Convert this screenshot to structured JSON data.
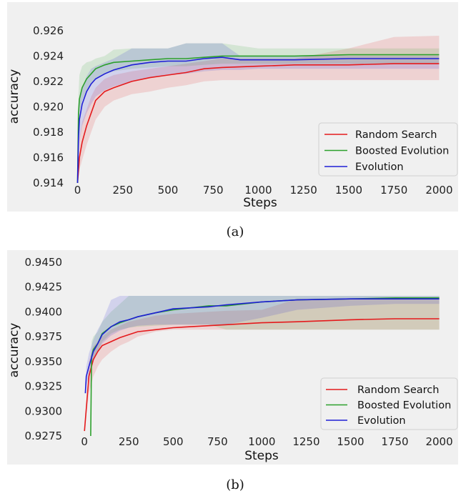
{
  "chart_data": [
    {
      "type": "line",
      "caption": "(a)",
      "xlabel": "Steps",
      "ylabel": "accuracy",
      "xlim": [
        -10,
        2030
      ],
      "ylim": [
        0.914,
        0.9265
      ],
      "xticks": [
        0,
        250,
        500,
        750,
        1000,
        1250,
        1500,
        1750,
        2000
      ],
      "yticks": [
        0.914,
        0.916,
        0.918,
        0.92,
        0.922,
        0.924,
        0.926
      ],
      "yticks_labels": [
        "0.914",
        "0.916",
        "0.918",
        "0.920",
        "0.922",
        "0.924",
        "0.926"
      ],
      "grid": false,
      "legend": "bottom-right",
      "series": [
        {
          "name": "Random Search",
          "color": "#e41a1c",
          "x": [
            0,
            10,
            25,
            50,
            75,
            100,
            150,
            200,
            300,
            400,
            500,
            600,
            700,
            800,
            1000,
            1200,
            1500,
            1750,
            2000
          ],
          "y": [
            0.914,
            0.916,
            0.9172,
            0.9185,
            0.9195,
            0.9205,
            0.9212,
            0.9215,
            0.922,
            0.9223,
            0.9225,
            0.9227,
            0.923,
            0.9231,
            0.9232,
            0.9233,
            0.9233,
            0.9234,
            0.9234
          ],
          "lower": [
            0.914,
            0.915,
            0.9158,
            0.917,
            0.918,
            0.919,
            0.92,
            0.9205,
            0.921,
            0.9212,
            0.9215,
            0.9217,
            0.922,
            0.9221,
            0.9221,
            0.9221,
            0.9221,
            0.9221,
            0.9221
          ],
          "upper": [
            0.914,
            0.9175,
            0.9188,
            0.9198,
            0.9208,
            0.9215,
            0.9222,
            0.9225,
            0.9228,
            0.923,
            0.9232,
            0.9234,
            0.9236,
            0.9238,
            0.9238,
            0.9238,
            0.9246,
            0.9255,
            0.9256
          ]
        },
        {
          "name": "Boosted Evolution",
          "color": "#2ca02c",
          "x": [
            0,
            5,
            10,
            25,
            50,
            75,
            100,
            150,
            200,
            300,
            400,
            500,
            600,
            700,
            800,
            1000,
            1200,
            1500,
            1750,
            2000
          ],
          "y": [
            0.914,
            0.9195,
            0.9206,
            0.9215,
            0.9222,
            0.9226,
            0.923,
            0.9233,
            0.9235,
            0.9236,
            0.9237,
            0.9238,
            0.9238,
            0.9239,
            0.924,
            0.924,
            0.924,
            0.9241,
            0.9241,
            0.9241
          ],
          "lower": [
            0.914,
            0.918,
            0.9195,
            0.9205,
            0.9213,
            0.9218,
            0.9222,
            0.9226,
            0.9228,
            0.923,
            0.9231,
            0.9232,
            0.9232,
            0.9233,
            0.9234,
            0.9234,
            0.9234,
            0.9234,
            0.9234,
            0.9234
          ],
          "upper": [
            0.914,
            0.921,
            0.9225,
            0.9232,
            0.9235,
            0.9236,
            0.9238,
            0.924,
            0.9245,
            0.9246,
            0.9246,
            0.9246,
            0.925,
            0.925,
            0.925,
            0.9246,
            0.9246,
            0.9246,
            0.9246,
            0.9246
          ]
        },
        {
          "name": "Evolution",
          "color": "#1f1fd6",
          "x": [
            0,
            5,
            10,
            25,
            50,
            75,
            100,
            150,
            200,
            300,
            400,
            500,
            600,
            700,
            800,
            900,
            1000,
            1200,
            1500,
            1750,
            2000
          ],
          "y": [
            0.914,
            0.9175,
            0.919,
            0.9202,
            0.9212,
            0.9218,
            0.9222,
            0.9226,
            0.9229,
            0.9233,
            0.9235,
            0.9236,
            0.9236,
            0.9238,
            0.9239,
            0.9237,
            0.9237,
            0.9237,
            0.9238,
            0.9238,
            0.9238
          ],
          "lower": [
            0.914,
            0.916,
            0.9172,
            0.9185,
            0.9195,
            0.9202,
            0.9208,
            0.9213,
            0.9216,
            0.922,
            0.9223,
            0.9225,
            0.9226,
            0.9228,
            0.9229,
            0.9229,
            0.923,
            0.923,
            0.923,
            0.923,
            0.923
          ],
          "upper": [
            0.914,
            0.919,
            0.9205,
            0.9215,
            0.9224,
            0.923,
            0.9232,
            0.9235,
            0.9238,
            0.9246,
            0.9246,
            0.9246,
            0.925,
            0.925,
            0.925,
            0.924,
            0.924,
            0.924,
            0.924,
            0.924,
            0.924
          ]
        }
      ]
    },
    {
      "type": "line",
      "caption": "(b)",
      "xlabel": "Steps",
      "ylabel": "accuracy",
      "xlim": [
        -25,
        2030
      ],
      "ylim": [
        0.9275,
        0.9452
      ],
      "xticks": [
        0,
        250,
        500,
        750,
        1000,
        1250,
        1500,
        1750,
        2000
      ],
      "yticks": [
        0.9275,
        0.93,
        0.9325,
        0.935,
        0.9375,
        0.94,
        0.9425,
        0.945
      ],
      "yticks_labels": [
        "0.9275",
        "0.9300",
        "0.9325",
        "0.9350",
        "0.9375",
        "0.9400",
        "0.9425",
        "0.9450"
      ],
      "grid": false,
      "legend": "bottom-right",
      "series": [
        {
          "name": "Random Search",
          "color": "#e41a1c",
          "x": [
            0,
            25,
            50,
            75,
            100,
            150,
            200,
            250,
            300,
            400,
            500,
            600,
            700,
            800,
            1000,
            1200,
            1500,
            1750,
            2000
          ],
          "y": [
            0.928,
            0.9335,
            0.9352,
            0.936,
            0.9366,
            0.937,
            0.9374,
            0.9377,
            0.938,
            0.9382,
            0.9384,
            0.9385,
            0.9386,
            0.9387,
            0.9389,
            0.939,
            0.9392,
            0.9393,
            0.9393
          ],
          "lower": [
            0.928,
            0.9318,
            0.9335,
            0.9345,
            0.9352,
            0.936,
            0.9366,
            0.937,
            0.9375,
            0.938,
            0.9382,
            0.9382,
            0.9382,
            0.9382,
            0.9382,
            0.9382,
            0.9382,
            0.9382,
            0.9382
          ],
          "upper": [
            0.928,
            0.935,
            0.9365,
            0.937,
            0.9375,
            0.9382,
            0.9386,
            0.939,
            0.9392,
            0.9396,
            0.9398,
            0.9399,
            0.94,
            0.9401,
            0.9402,
            0.9413,
            0.9413,
            0.9413,
            0.9413
          ]
        },
        {
          "name": "Boosted Evolution",
          "color": "#2ca02c",
          "x": [
            35,
            40,
            50,
            75,
            100,
            150,
            200,
            250,
            300,
            400,
            500,
            600,
            700,
            800,
            1000,
            1200,
            1500,
            1750,
            2000
          ],
          "y": [
            0.9275,
            0.9355,
            0.9362,
            0.9368,
            0.9378,
            0.9385,
            0.9389,
            0.9392,
            0.9395,
            0.9399,
            0.9402,
            0.9404,
            0.9406,
            0.9406,
            0.941,
            0.9412,
            0.9413,
            0.9414,
            0.9414
          ],
          "lower": [
            0.9275,
            0.9345,
            0.9352,
            0.936,
            0.937,
            0.9378,
            0.9382,
            0.9384,
            0.9385,
            0.9386,
            0.9387,
            0.9387,
            0.9387,
            0.9382,
            0.9382,
            0.9382,
            0.9382,
            0.9382,
            0.9382
          ],
          "upper": [
            0.9275,
            0.937,
            0.9375,
            0.938,
            0.939,
            0.94,
            0.9408,
            0.9416,
            0.9416,
            0.9416,
            0.9416,
            0.9416,
            0.9416,
            0.9416,
            0.9416,
            0.9416,
            0.9416,
            0.9416,
            0.9416
          ]
        },
        {
          "name": "Evolution",
          "color": "#1f1fd6",
          "x": [
            5,
            10,
            25,
            50,
            75,
            100,
            150,
            200,
            250,
            300,
            400,
            500,
            600,
            700,
            800,
            1000,
            1200,
            1500,
            1750,
            2000
          ],
          "y": [
            0.9318,
            0.9335,
            0.9345,
            0.936,
            0.9368,
            0.9377,
            0.9385,
            0.939,
            0.9392,
            0.9395,
            0.9399,
            0.9403,
            0.9404,
            0.9405,
            0.9407,
            0.941,
            0.9412,
            0.9413,
            0.9413,
            0.9413
          ],
          "lower": [
            0.9318,
            0.9325,
            0.9335,
            0.935,
            0.936,
            0.9368,
            0.9376,
            0.9381,
            0.9384,
            0.9386,
            0.9387,
            0.9387,
            0.9387,
            0.9387,
            0.9387,
            0.9394,
            0.9402,
            0.9406,
            0.9408,
            0.9408
          ],
          "upper": [
            0.9318,
            0.9345,
            0.9358,
            0.9372,
            0.9382,
            0.939,
            0.9412,
            0.9416,
            0.9416,
            0.9416,
            0.9416,
            0.9416,
            0.9416,
            0.9416,
            0.9416,
            0.9416,
            0.9416,
            0.9416,
            0.9416,
            0.9416
          ]
        }
      ]
    }
  ]
}
